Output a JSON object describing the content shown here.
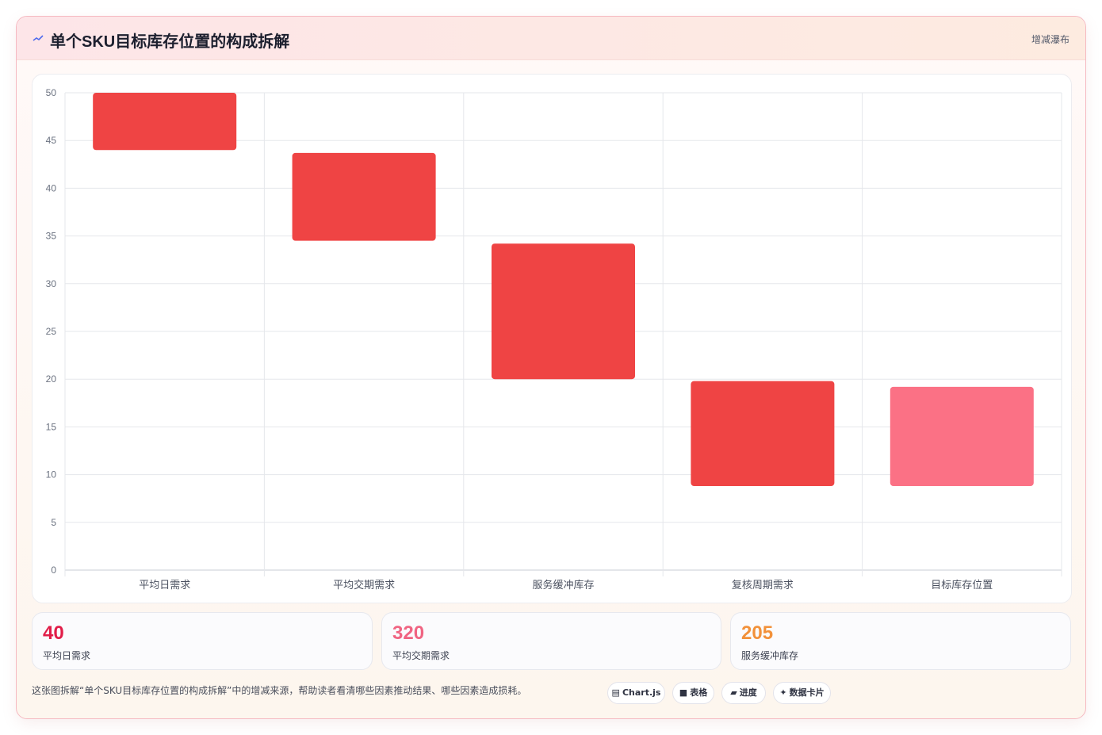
{
  "header": {
    "title": "单个SKU目标库存位置的构成拆解",
    "tag": "增减瀑布",
    "icon": "chart-line-icon"
  },
  "chart_data": {
    "type": "bar",
    "subtype": "waterfall",
    "categories": [
      "平均日需求",
      "平均交期需求",
      "服务缓冲库存",
      "复核周期需求",
      "目标库存位置"
    ],
    "ranges": [
      [
        44,
        50
      ],
      [
        34.5,
        43.7
      ],
      [
        20,
        34.2
      ],
      [
        8.8,
        19.8
      ],
      [
        8.8,
        19.2
      ]
    ],
    "colors": [
      "#ef4444",
      "#ef4444",
      "#ef4444",
      "#ef4444",
      "#fb7185"
    ],
    "ylim": [
      0,
      50
    ],
    "yticks": [
      0,
      5,
      10,
      15,
      20,
      25,
      30,
      35,
      40,
      45,
      50
    ],
    "grid": true,
    "legend": "none"
  },
  "stats": [
    {
      "value": "40",
      "label": "平均日需求",
      "color": "#e11d48"
    },
    {
      "value": "320",
      "label": "平均交期需求",
      "color": "#f06482"
    },
    {
      "value": "205",
      "label": "服务缓冲库存",
      "color": "#f2913a"
    }
  ],
  "footnote": "这张图拆解“单个SKU目标库存位置的构成拆解”中的增减来源，帮助读者看清哪些因素推动结果、哪些因素造成损耗。",
  "chips": [
    {
      "glyph": "▤",
      "label": "Chart.js",
      "icon": "chart-icon"
    },
    {
      "glyph": "■",
      "label": "表格",
      "icon": "table-icon"
    },
    {
      "glyph": "▰",
      "label": "进度",
      "icon": "progress-icon"
    },
    {
      "glyph": "✦",
      "label": "数据卡片",
      "icon": "sparkle-icon"
    }
  ]
}
